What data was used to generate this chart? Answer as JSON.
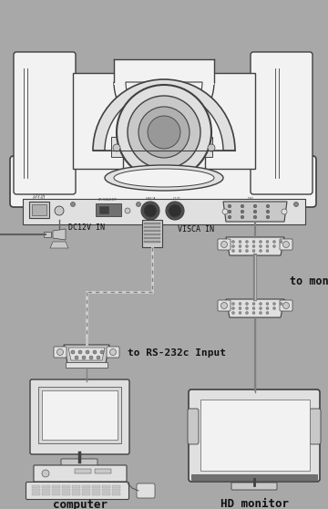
{
  "bg_color": "#a8a8a8",
  "line_color": "#404040",
  "white_fill": "#f2f2f2",
  "light_fill": "#e0e0e0",
  "mid_fill": "#c8c8c8",
  "dark_fill": "#888888",
  "label_color": "#111111",
  "labels": {
    "dc12v": "DC12V IN",
    "visca_in": "VISCA IN",
    "to_rs232c": "to RS-232c Input",
    "to_monitor": "to monitor",
    "computer": "computer",
    "hd_monitor": "HD monitor"
  },
  "fig_width": 3.6,
  "fig_height": 5.58
}
